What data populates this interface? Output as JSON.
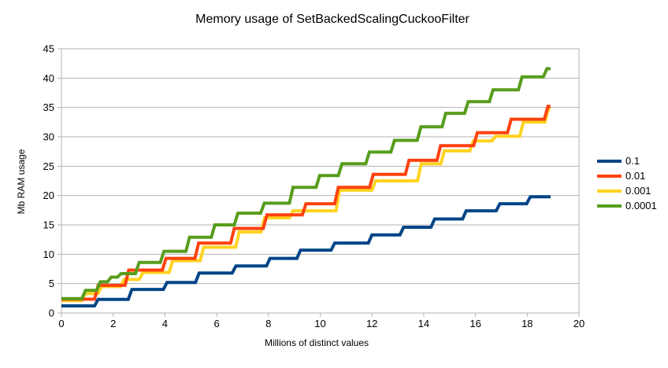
{
  "chart_data": {
    "type": "line",
    "title": "Memory usage of SetBackedScalingCuckooFilter",
    "xlabel": "Millions of distinct values",
    "ylabel": "Mb RAM usage",
    "xlim": [
      0,
      20
    ],
    "ylim": [
      0,
      45
    ],
    "x_ticks": [
      0,
      2,
      4,
      6,
      8,
      10,
      12,
      14,
      16,
      18,
      20
    ],
    "y_ticks": [
      0,
      5,
      10,
      15,
      20,
      25,
      30,
      35,
      40,
      45
    ],
    "grid": "horizontal",
    "legend_position": "right",
    "x_end": 18.9,
    "grid_color": "#b3b3b3",
    "text_color": "#000000",
    "series": [
      {
        "name": "0.1",
        "color": "#004586",
        "flats": [
          [
            0,
            1.2
          ],
          [
            1.42,
            2.3
          ],
          [
            2.72,
            4.0
          ],
          [
            4.08,
            5.2
          ],
          [
            5.32,
            6.8
          ],
          [
            6.74,
            8.0
          ],
          [
            8.06,
            9.3
          ],
          [
            9.24,
            10.7
          ],
          [
            10.56,
            11.9
          ],
          [
            12.0,
            13.3
          ],
          [
            13.22,
            14.6
          ],
          [
            14.42,
            16.0
          ],
          [
            15.64,
            17.4
          ],
          [
            16.94,
            18.6
          ],
          [
            18.12,
            19.8
          ]
        ]
      },
      {
        "name": "0.01",
        "color": "#FF420E",
        "flats": [
          [
            0,
            2.35
          ],
          [
            1.42,
            4.7
          ],
          [
            2.6,
            7.3
          ],
          [
            4.04,
            9.3
          ],
          [
            5.3,
            11.9
          ],
          [
            6.68,
            14.4
          ],
          [
            7.94,
            16.7
          ],
          [
            9.45,
            18.6
          ],
          [
            10.7,
            21.4
          ],
          [
            12.05,
            23.6
          ],
          [
            13.43,
            26.0
          ],
          [
            14.65,
            28.5
          ],
          [
            16.07,
            30.7
          ],
          [
            17.38,
            33.0
          ],
          [
            18.8,
            35.2
          ]
        ]
      },
      {
        "name": "0.001",
        "color": "#FFD320",
        "flats": [
          [
            0,
            2.1
          ],
          [
            0.92,
            3.3
          ],
          [
            1.55,
            4.5
          ],
          [
            2.42,
            5.7
          ],
          [
            3.15,
            6.9
          ],
          [
            4.3,
            8.9
          ],
          [
            5.5,
            11.2
          ],
          [
            6.87,
            13.8
          ],
          [
            7.85,
            16.2
          ],
          [
            8.95,
            17.4
          ],
          [
            10.75,
            20.9
          ],
          [
            12.14,
            22.5
          ],
          [
            13.9,
            25.4
          ],
          [
            14.8,
            27.6
          ],
          [
            15.92,
            29.3
          ],
          [
            16.78,
            30.1
          ],
          [
            17.85,
            32.5
          ],
          [
            18.82,
            34.8
          ]
        ]
      },
      {
        "name": "0.0001",
        "color": "#579D1C",
        "flats": [
          [
            0,
            2.45
          ],
          [
            0.93,
            3.85
          ],
          [
            1.5,
            5.3
          ],
          [
            1.92,
            6.1
          ],
          [
            2.3,
            6.7
          ],
          [
            3.0,
            8.6
          ],
          [
            3.96,
            10.5
          ],
          [
            4.95,
            12.9
          ],
          [
            5.93,
            15.0
          ],
          [
            6.82,
            17.0
          ],
          [
            7.84,
            18.7
          ],
          [
            8.95,
            21.4
          ],
          [
            9.98,
            23.4
          ],
          [
            10.84,
            25.4
          ],
          [
            11.9,
            27.4
          ],
          [
            12.87,
            29.4
          ],
          [
            13.89,
            31.7
          ],
          [
            14.85,
            34.0
          ],
          [
            15.72,
            36.0
          ],
          [
            16.68,
            38.0
          ],
          [
            17.8,
            40.2
          ],
          [
            18.76,
            41.6
          ]
        ]
      }
    ],
    "draw_order": [
      0,
      2,
      1,
      3
    ]
  }
}
